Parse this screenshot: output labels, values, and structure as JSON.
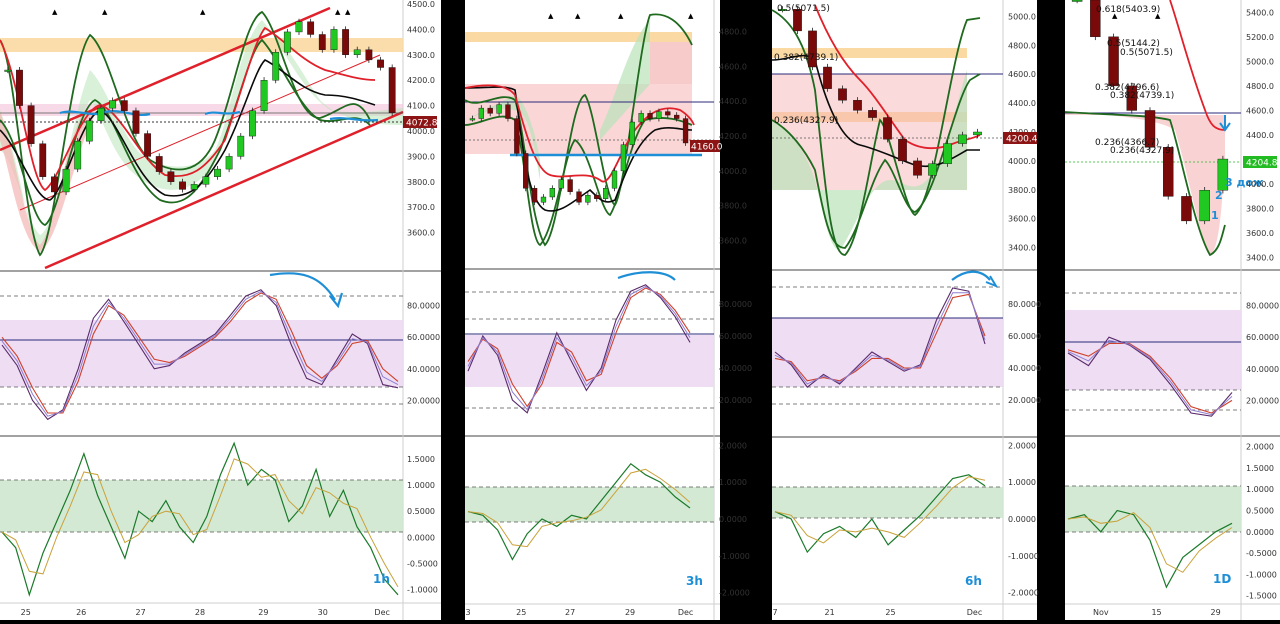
{
  "colors": {
    "background_gap": "#000000",
    "chart_bg": "#ffffff",
    "candle_up": "#22c822",
    "candle_down": "#7a0a0a",
    "candle_wick": "#222222",
    "trend_red": "#e0202a",
    "band_green": "#1e6a1e",
    "band_dark": "#0a0a0a",
    "fill_green": "#b9e3b9",
    "fill_red": "#f5b5b5",
    "zone_orange": "#fbd9a3",
    "stoch_zone": "#ecd9f2",
    "osc_zone": "#cfe7cf",
    "annotation_blue": "#1e8fd6",
    "price_tag": "#8c1414",
    "last_price_green": "#22bb22",
    "hline_navy": "#2a2a7a"
  },
  "chart_data": [
    {
      "type": "candlestick",
      "timeframe_label": "1h",
      "price_axis": {
        "ylim": [
          3500,
          4500
        ],
        "ticks": [
          "4500.0",
          "4400.0",
          "4300.0",
          "4200.0",
          "4100.0",
          "4000.0",
          "3900.0",
          "3800.0",
          "3700.0",
          "3600.0"
        ],
        "last_price": "4072.8",
        "last_value": 4072.8
      },
      "x_labels": [
        "25",
        "26",
        "27",
        "28",
        "29",
        "30",
        "Dec"
      ],
      "closes": [
        4240,
        4100,
        3950,
        3820,
        3760,
        3850,
        3960,
        4040,
        4090,
        4120,
        4080,
        3990,
        3900,
        3840,
        3800,
        3770,
        3790,
        3820,
        3850,
        3900,
        3980,
        4080,
        4200,
        4310,
        4390,
        4430,
        4380,
        4320,
        4400,
        4300,
        4320,
        4280,
        4250,
        4072
      ],
      "stoch": {
        "ylim": [
          0,
          100
        ],
        "ticks": [
          "80.0000",
          "60.0000",
          "40.0000",
          "20.0000"
        ],
        "k": [
          55,
          42,
          20,
          8,
          14,
          40,
          72,
          84,
          70,
          55,
          40,
          42,
          50,
          56,
          62,
          74,
          86,
          90,
          80,
          55,
          34,
          30,
          46,
          62,
          56,
          30,
          28
        ],
        "d": [
          60,
          48,
          28,
          12,
          12,
          32,
          62,
          80,
          74,
          60,
          46,
          44,
          48,
          54,
          60,
          70,
          82,
          88,
          84,
          64,
          42,
          34,
          42,
          56,
          58,
          40,
          32
        ]
      },
      "osc": {
        "ylim": [
          -1.2,
          1.9
        ],
        "ticks": [
          "1.5000",
          "1.0000",
          "0.5000",
          "0.0000",
          "-0.5000",
          "-1.0000"
        ],
        "values": [
          0.1,
          -0.2,
          -1.1,
          -0.3,
          0.3,
          0.9,
          1.6,
          0.8,
          0.2,
          -0.4,
          0.5,
          0.3,
          0.7,
          0.2,
          -0.1,
          0.4,
          1.2,
          1.8,
          1.0,
          1.3,
          1.1,
          0.3,
          0.6,
          1.3,
          0.4,
          0.9,
          0.2,
          -0.2,
          -0.8,
          -1.1
        ]
      }
    },
    {
      "type": "candlestick",
      "timeframe_label": "3h",
      "price_axis": {
        "ylim": [
          3500,
          4900
        ],
        "ticks": [
          "4800.0",
          "4600.0",
          "4400.0",
          "4200.0",
          "4000.0",
          "3800.0",
          "3600.0"
        ],
        "last_price": "4160.0",
        "last_value": 4160.0
      },
      "x_labels": [
        "3",
        "25",
        "27",
        "29",
        "Dec"
      ],
      "closes": [
        4300,
        4360,
        4330,
        4380,
        4300,
        4100,
        3900,
        3820,
        3850,
        3900,
        3950,
        3880,
        3820,
        3860,
        3840,
        3900,
        4000,
        4150,
        4280,
        4330,
        4300,
        4340,
        4320,
        4300,
        4160
      ],
      "stoch": {
        "ylim": [
          0,
          100
        ],
        "ticks": [
          "80.0000",
          "60.0000",
          "40.0000",
          "20.0000"
        ],
        "k": [
          38,
          60,
          48,
          20,
          12,
          36,
          62,
          44,
          26,
          40,
          70,
          88,
          92,
          84,
          72,
          56
        ],
        "d": [
          44,
          58,
          52,
          30,
          16,
          30,
          56,
          50,
          32,
          36,
          62,
          84,
          90,
          86,
          76,
          62
        ]
      },
      "osc": {
        "ylim": [
          -2.2,
          2.2
        ],
        "ticks": [
          "2.0000",
          "1.0000",
          "0.0000",
          "-1.0000",
          "-2.0000"
        ],
        "values": [
          0.2,
          0.1,
          -0.3,
          -1.1,
          -0.4,
          0.0,
          -0.2,
          0.1,
          0.0,
          0.5,
          1.0,
          1.5,
          1.2,
          1.0,
          0.6,
          0.3
        ]
      }
    },
    {
      "type": "candlestick",
      "timeframe_label": "6h",
      "price_axis": {
        "ylim": [
          3300,
          5100
        ],
        "ticks": [
          "5000.0",
          "4800.0",
          "4600.0",
          "4400.0",
          "4200.0",
          "4000.0",
          "3800.0",
          "3600.0",
          "3400.0"
        ],
        "last_price": "4200.4",
        "last_value": 4200.4
      },
      "x_labels": [
        "7",
        "21",
        "25",
        "Dec"
      ],
      "fib_labels": [
        "0.5(5071.5)",
        "0.382(4739.1)",
        "0.236(4327.9)"
      ],
      "closes": [
        5050,
        4900,
        4650,
        4500,
        4420,
        4350,
        4300,
        4150,
        4000,
        3900,
        3980,
        4120,
        4180,
        4200
      ],
      "stoch": {
        "ylim": [
          0,
          100
        ],
        "ticks": [
          "80.0000",
          "60.0000",
          "40.0000",
          "20.0000"
        ],
        "k": [
          50,
          42,
          28,
          36,
          30,
          40,
          50,
          44,
          38,
          42,
          70,
          90,
          88,
          55
        ],
        "d": [
          46,
          44,
          32,
          34,
          32,
          38,
          46,
          46,
          40,
          40,
          62,
          84,
          86,
          60
        ]
      },
      "osc": {
        "ylim": [
          -2.2,
          2.2
        ],
        "ticks": [
          "2.0000",
          "1.0000",
          "0.0000",
          "-1.0000",
          "-2.0000"
        ],
        "values": [
          0.2,
          0.0,
          -0.9,
          -0.4,
          -0.2,
          -0.5,
          0.0,
          -0.7,
          -0.3,
          0.1,
          0.6,
          1.1,
          1.2,
          0.9
        ]
      }
    },
    {
      "type": "candlestick",
      "timeframe_label": "1D",
      "price_axis": {
        "ylim": [
          3300,
          5500
        ],
        "ticks": [
          "5400.0",
          "5200.0",
          "5000.0",
          "4800.0",
          "4600.0",
          "4400.0",
          "4200.0",
          "4000.0",
          "3800.0",
          "3600.0",
          "3400.0"
        ],
        "last_price": "4204.8",
        "last_value": 4204.8
      },
      "x_labels": [
        "Nov",
        "15",
        "29"
      ],
      "fib_labels": [
        "0.618(5403.9)",
        "0.5(5144.2)",
        "0.5(5071.5)",
        "0.382(4796.6)",
        "0.382(4739.1)",
        "0.236(4366.7)",
        "0.236(4327.9)"
      ],
      "closes": [
        5500,
        5200,
        4800,
        4600,
        4300,
        3900,
        3700,
        3950,
        4204
      ],
      "stoch": {
        "ylim": [
          0,
          100
        ],
        "ticks": [
          "80.0000",
          "60.0000",
          "40.0000",
          "20.0000"
        ],
        "k": [
          50,
          42,
          60,
          55,
          46,
          30,
          12,
          10,
          25
        ],
        "d": [
          52,
          48,
          56,
          56,
          48,
          34,
          16,
          12,
          20
        ]
      },
      "osc": {
        "ylim": [
          -1.6,
          2.2
        ],
        "ticks": [
          "2.0000",
          "1.5000",
          "1.0000",
          "0.5000",
          "0.0000",
          "-0.5000",
          "-1.0000",
          "-1.5000"
        ],
        "values": [
          0.3,
          0.4,
          0.0,
          0.5,
          0.4,
          -0.2,
          -1.3,
          -0.6,
          -0.3,
          0.0,
          0.2
        ]
      },
      "annotations": [
        "3 дож",
        "2",
        "1"
      ]
    }
  ]
}
